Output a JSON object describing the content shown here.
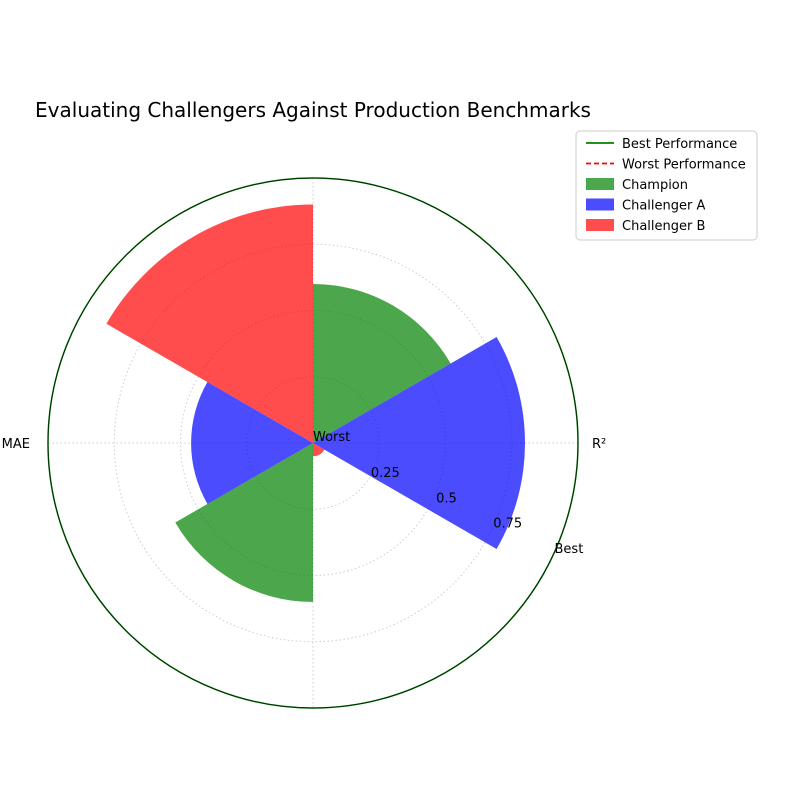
{
  "chart_data": {
    "type": "polar-bar",
    "title": "Evaluating Challengers Against Production Benchmarks",
    "metric_labels": [
      "R²",
      "MAE"
    ],
    "radial_ticks": [
      {
        "value": 0,
        "label": "Worst"
      },
      {
        "value": 0.25,
        "label": "0.25"
      },
      {
        "value": 0.5,
        "label": "0.5"
      },
      {
        "value": 0.75,
        "label": "0.75"
      },
      {
        "value": 1.0,
        "label": "Best"
      }
    ],
    "rlim": [
      0,
      1
    ],
    "grid": true,
    "legend_position": "top-right",
    "reference_lines": [
      {
        "name": "Best Performance",
        "value": 1.0,
        "color": "#008000",
        "style": "solid"
      },
      {
        "name": "Worst Performance",
        "value": 0.0,
        "color": "#ff0000",
        "style": "dashed"
      }
    ],
    "series": [
      {
        "name": "Champion",
        "color": "#008000",
        "opacity": 0.7,
        "bars": [
          {
            "angle_deg": 60,
            "value": 0.6
          },
          {
            "angle_deg": 240,
            "value": 0.6
          }
        ]
      },
      {
        "name": "Challenger A",
        "color": "#0000ff",
        "opacity": 0.7,
        "bars": [
          {
            "angle_deg": 0,
            "value": 0.8
          },
          {
            "angle_deg": 180,
            "value": 0.46
          }
        ]
      },
      {
        "name": "Challenger B",
        "color": "#ff0000",
        "opacity": 0.7,
        "bars": [
          {
            "angle_deg": 120,
            "value": 0.9
          },
          {
            "angle_deg": 300,
            "value": 0.05
          }
        ]
      }
    ],
    "bar_width_deg": 60
  }
}
